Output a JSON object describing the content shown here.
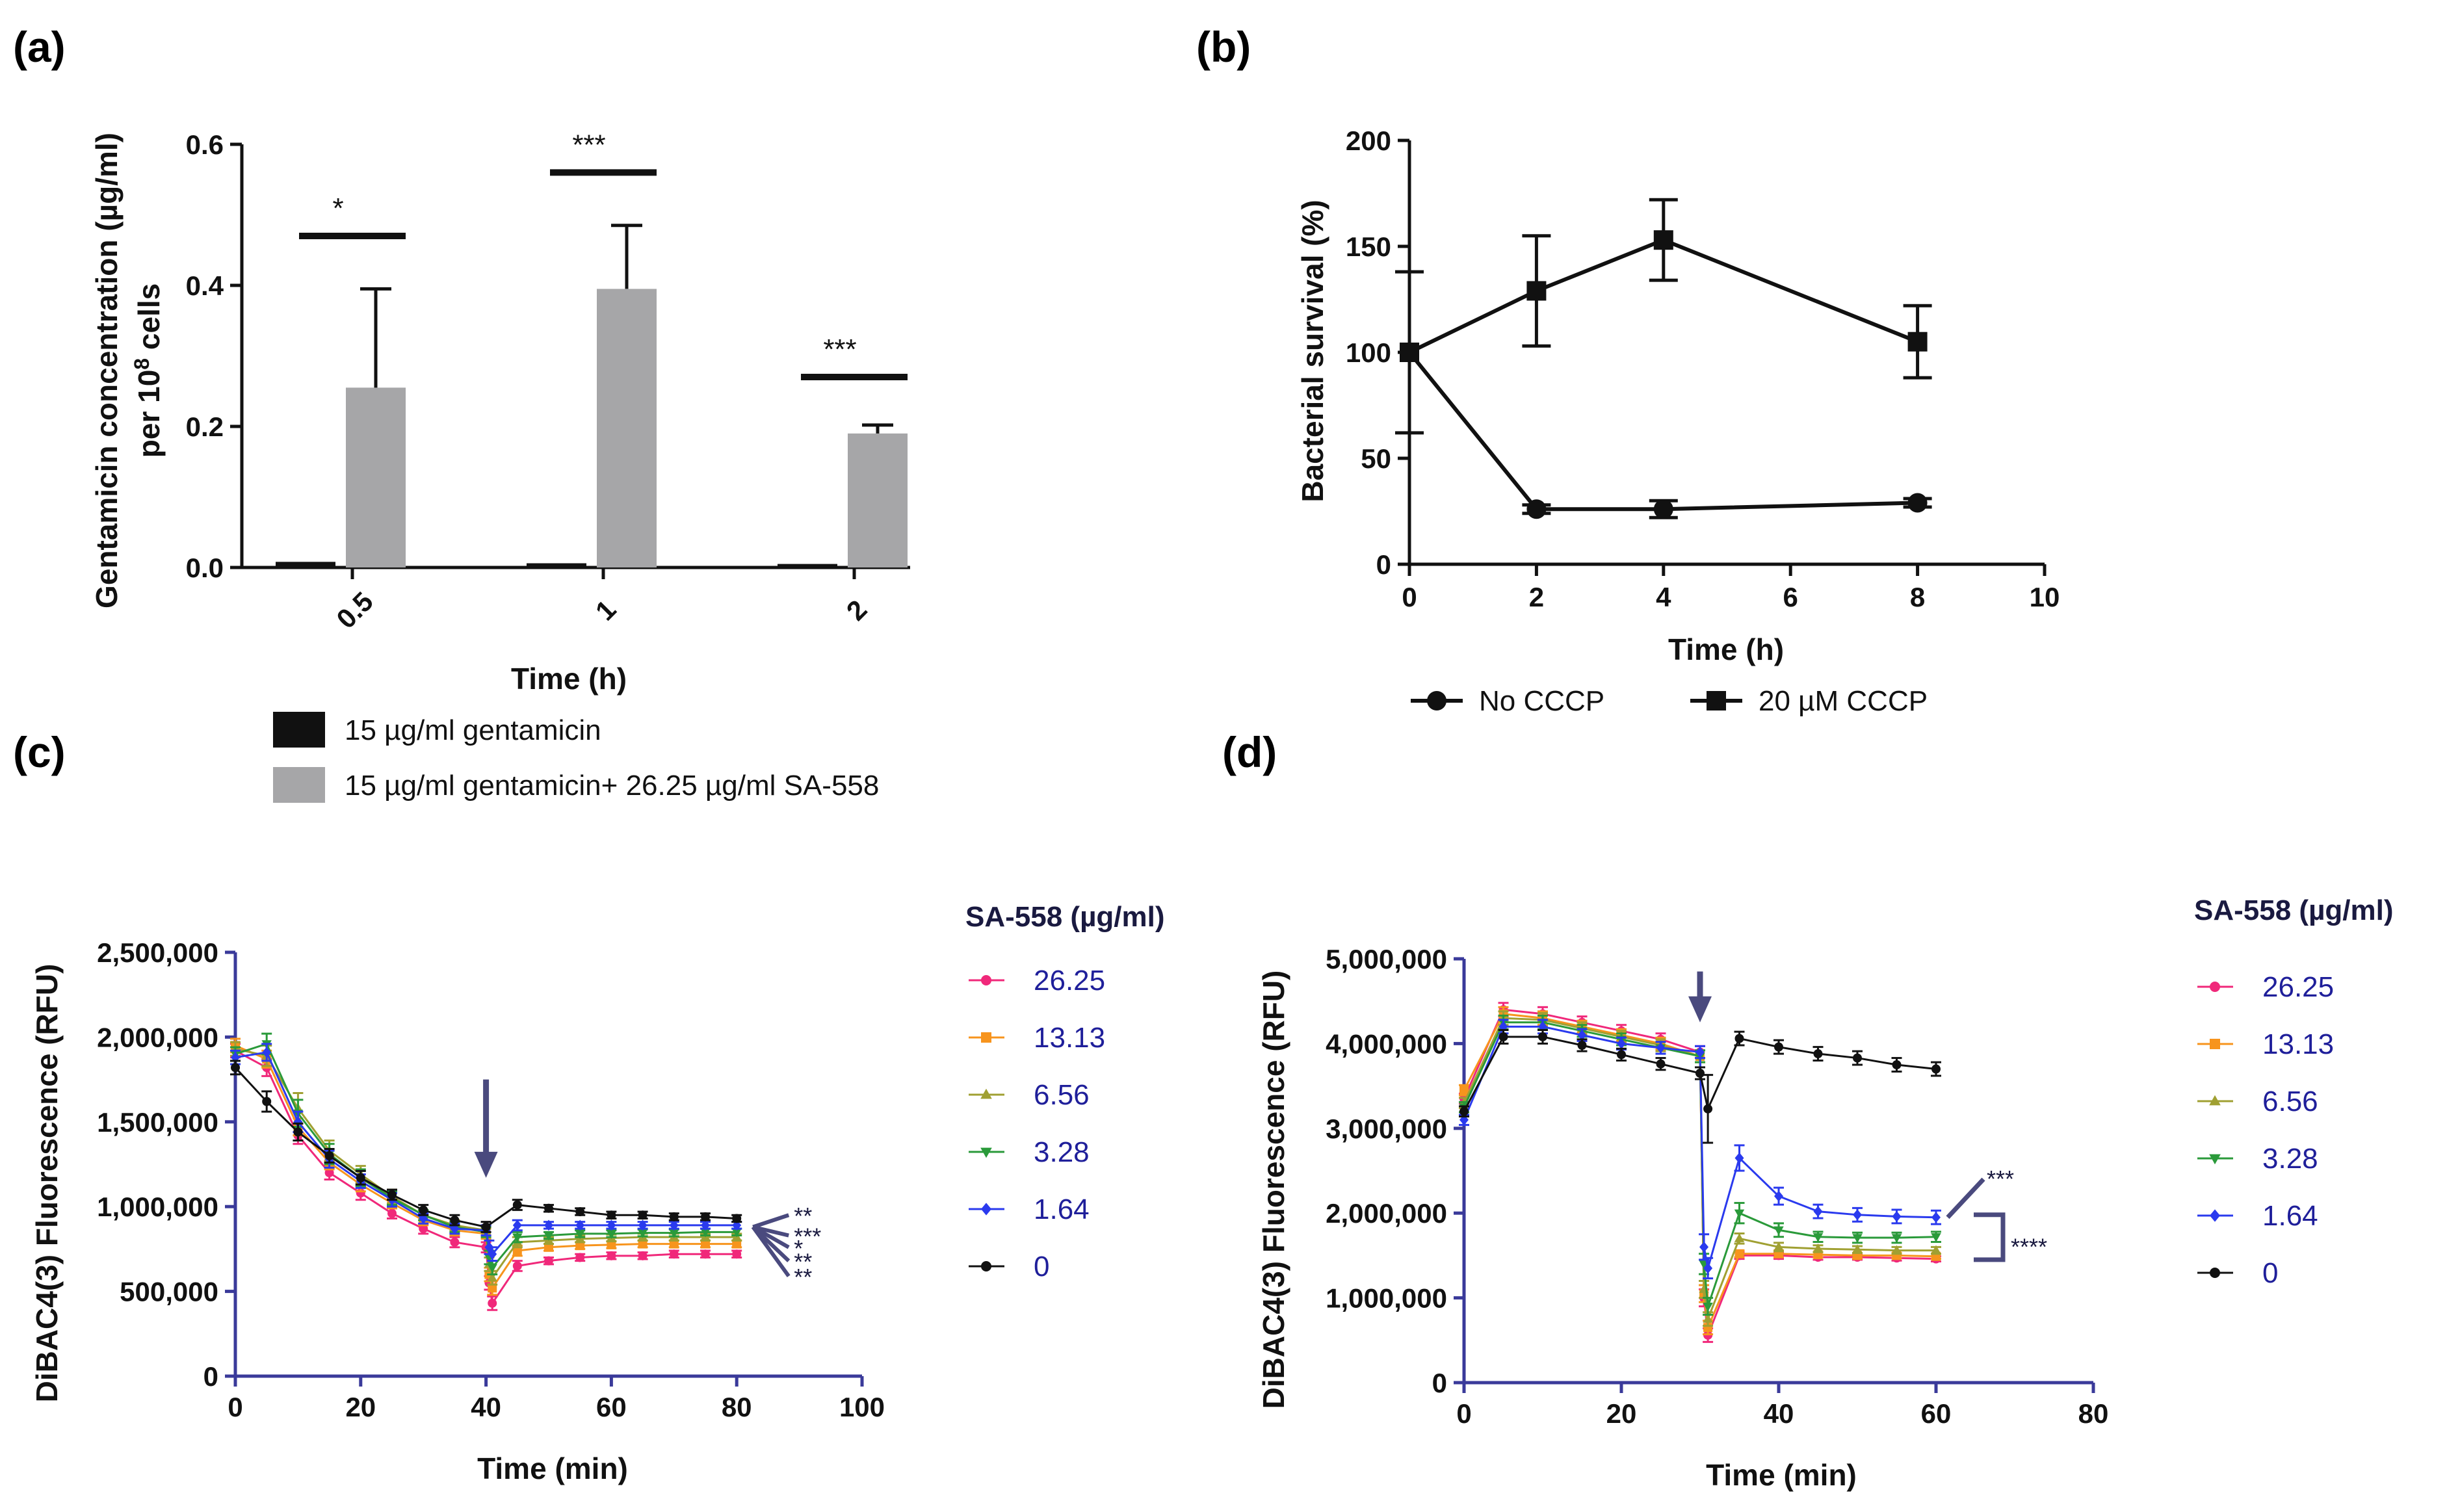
{
  "panels": {
    "a": {
      "label": "(a)"
    },
    "b": {
      "label": "(b)"
    },
    "c": {
      "label": "(c)"
    },
    "d": {
      "label": "(d)"
    }
  },
  "colors": {
    "black": "#111111",
    "gray": "#a6a6a8",
    "axis_blue": "#3a3a9a",
    "arrow": "#4a4a7e",
    "s26_25": "#f0287a",
    "s13_13": "#f7941d",
    "s6_56": "#a0a032",
    "s3_28": "#2a9a3a",
    "s1_64": "#2a3aee",
    "s0": "#111111"
  },
  "chart_data": [
    {
      "id": "a",
      "type": "bar",
      "title": "",
      "xlabel": "Time (h)",
      "ylabel_line1": "Gentamicin concentration (µg/ml)",
      "ylabel_line2_pre": "per 10",
      "ylabel_line2_sup": "8",
      "ylabel_line2_post": " cells",
      "categories": [
        "0.5",
        "1",
        "2"
      ],
      "ylim": [
        0,
        0.6
      ],
      "yticks": [
        0,
        0.2,
        0.4,
        0.6
      ],
      "ytick_labels": [
        "0.0",
        "0.2",
        "0.4",
        "0.6"
      ],
      "series": [
        {
          "name": "15 µg/ml gentamicin",
          "color": "#111111",
          "values": [
            0.008,
            0.006,
            0.005
          ],
          "errors": [
            0,
            0,
            0
          ]
        },
        {
          "name": "15 µg/ml gentamicin+ 26.25 µg/ml SA-558",
          "color": "#a6a6a8",
          "values": [
            0.255,
            0.395,
            0.19
          ],
          "errors": [
            0.14,
            0.09,
            0.012
          ]
        }
      ],
      "significance": [
        {
          "category": "0.5",
          "label": "*",
          "y": 0.47
        },
        {
          "category": "1",
          "label": "***",
          "y": 0.56
        },
        {
          "category": "2",
          "label": "***",
          "y": 0.27
        }
      ],
      "legend_position": "bottom"
    },
    {
      "id": "b",
      "type": "line",
      "title": "",
      "xlabel": "Time (h)",
      "ylabel": "Bacterial survival (%)",
      "xlim": [
        0,
        10
      ],
      "ylim": [
        0,
        200
      ],
      "xticks": [
        0,
        2,
        4,
        6,
        8,
        10
      ],
      "yticks": [
        0,
        50,
        100,
        150,
        200
      ],
      "series": [
        {
          "name": "No CCCP",
          "marker": "circle",
          "x": [
            0,
            2,
            4,
            8
          ],
          "y": [
            100,
            26,
            26,
            29
          ],
          "err": [
            38,
            2,
            4,
            2
          ]
        },
        {
          "name": "20 µM CCCP",
          "marker": "square",
          "x": [
            0,
            2,
            4,
            8
          ],
          "y": [
            100,
            129,
            153,
            105
          ],
          "err": [
            0,
            26,
            19,
            17
          ]
        }
      ],
      "legend_position": "bottom"
    },
    {
      "id": "c",
      "type": "line",
      "title": "",
      "xlabel": "Time (min)",
      "ylabel": "DiBAC4(3) Fluorescence (RFU)",
      "xlim": [
        0,
        100
      ],
      "ylim": [
        0,
        2500000
      ],
      "xticks": [
        0,
        20,
        40,
        60,
        80,
        100
      ],
      "yticks": [
        0,
        500000,
        1000000,
        1500000,
        2000000,
        2500000
      ],
      "ytick_labels": [
        "0",
        "500,000",
        "1,000,000",
        "1,500,000",
        "2,000,000",
        "2,500,000"
      ],
      "legend_title": "SA-558 (µg/ml)",
      "arrow_x": 40,
      "arrow_y_top": 1750000,
      "arrow_y_bottom": 1170000,
      "x": [
        0,
        5,
        10,
        15,
        20,
        25,
        30,
        35,
        40,
        40.5,
        41,
        45,
        50,
        55,
        60,
        65,
        70,
        75,
        80
      ],
      "series": [
        {
          "name": "26.25",
          "color_key": "s26_25",
          "marker": "circle",
          "y": [
            1920000,
            1820000,
            1420000,
            1200000,
            1080000,
            960000,
            870000,
            790000,
            760000,
            550000,
            430000,
            650000,
            680000,
            700000,
            710000,
            710000,
            720000,
            720000,
            720000
          ],
          "err": [
            40000,
            50000,
            50000,
            40000,
            40000,
            30000,
            30000,
            30000,
            30000,
            40000,
            40000,
            30000,
            20000,
            20000,
            20000,
            20000,
            20000,
            20000,
            20000
          ]
        },
        {
          "name": "13.13",
          "color_key": "s13_13",
          "marker": "square",
          "y": [
            1950000,
            1870000,
            1470000,
            1260000,
            1130000,
            1020000,
            920000,
            860000,
            840000,
            600000,
            520000,
            740000,
            760000,
            770000,
            775000,
            780000,
            780000,
            780000,
            780000
          ],
          "err": [
            40000,
            50000,
            50000,
            40000,
            40000,
            30000,
            30000,
            30000,
            30000,
            40000,
            40000,
            30000,
            20000,
            20000,
            20000,
            20000,
            20000,
            20000,
            20000
          ]
        },
        {
          "name": "6.56",
          "color_key": "s6_56",
          "marker": "triangle-up",
          "y": [
            1930000,
            1890000,
            1580000,
            1330000,
            1190000,
            1060000,
            950000,
            890000,
            860000,
            660000,
            580000,
            790000,
            800000,
            810000,
            815000,
            820000,
            820000,
            820000,
            820000
          ],
          "err": [
            40000,
            60000,
            90000,
            60000,
            50000,
            40000,
            30000,
            30000,
            30000,
            40000,
            40000,
            30000,
            20000,
            20000,
            20000,
            20000,
            20000,
            20000,
            20000
          ]
        },
        {
          "name": "3.28",
          "color_key": "s3_28",
          "marker": "triangle-down",
          "y": [
            1900000,
            1960000,
            1550000,
            1310000,
            1170000,
            1050000,
            950000,
            880000,
            850000,
            700000,
            640000,
            820000,
            830000,
            840000,
            840000,
            845000,
            845000,
            850000,
            850000
          ],
          "err": [
            40000,
            60000,
            80000,
            60000,
            50000,
            40000,
            30000,
            30000,
            30000,
            40000,
            40000,
            30000,
            20000,
            20000,
            20000,
            20000,
            20000,
            20000,
            20000
          ]
        },
        {
          "name": "1.64",
          "color_key": "s1_64",
          "marker": "diamond",
          "y": [
            1880000,
            1910000,
            1500000,
            1280000,
            1150000,
            1040000,
            930000,
            870000,
            860000,
            760000,
            720000,
            890000,
            890000,
            890000,
            890000,
            890000,
            890000,
            890000,
            890000
          ],
          "err": [
            40000,
            50000,
            60000,
            50000,
            40000,
            40000,
            30000,
            30000,
            30000,
            40000,
            40000,
            30000,
            20000,
            20000,
            20000,
            20000,
            20000,
            20000,
            20000
          ]
        },
        {
          "name": "0",
          "color_key": "s0",
          "marker": "circle",
          "y": [
            1820000,
            1620000,
            1440000,
            1300000,
            1170000,
            1070000,
            980000,
            920000,
            880000,
            null,
            null,
            1010000,
            990000,
            970000,
            950000,
            950000,
            940000,
            940000,
            930000
          ],
          "err": [
            40000,
            60000,
            50000,
            40000,
            40000,
            30000,
            30000,
            30000,
            30000,
            0,
            0,
            30000,
            20000,
            20000,
            20000,
            20000,
            20000,
            20000,
            20000
          ]
        }
      ],
      "annotations": [
        {
          "label": "**",
          "y": 950000
        },
        {
          "label": "***",
          "y": 830000
        },
        {
          "label": "*",
          "y": 760000
        },
        {
          "label": "**",
          "y": 680000
        },
        {
          "label": "**",
          "y": 590000
        }
      ]
    },
    {
      "id": "d",
      "type": "line",
      "title": "",
      "xlabel": "Time (min)",
      "ylabel": "DiBAC4(3) Fluorescence (RFU)",
      "xlim": [
        0,
        80
      ],
      "ylim": [
        0,
        5000000
      ],
      "xticks": [
        0,
        20,
        40,
        60,
        80
      ],
      "yticks": [
        0,
        1000000,
        2000000,
        3000000,
        4000000,
        5000000
      ],
      "ytick_labels": [
        "0",
        "1,000,000",
        "2,000,000",
        "3,000,000",
        "4,000,000",
        "5,000,000"
      ],
      "legend_title": "SA-558 (µg/ml)",
      "arrow_x": 30,
      "arrow_y_top": 4850000,
      "arrow_y_bottom": 4250000,
      "x": [
        0,
        5,
        10,
        15,
        20,
        25,
        30,
        30.5,
        31,
        35,
        40,
        45,
        50,
        55,
        60
      ],
      "series": [
        {
          "name": "26.25",
          "color_key": "s26_25",
          "marker": "circle",
          "y": [
            3350000,
            4400000,
            4350000,
            4250000,
            4150000,
            4050000,
            3900000,
            1000000,
            560000,
            1500000,
            1500000,
            1480000,
            1480000,
            1470000,
            1460000
          ],
          "err": [
            60000,
            80000,
            80000,
            70000,
            70000,
            70000,
            70000,
            100000,
            80000,
            40000,
            40000,
            30000,
            30000,
            30000,
            30000
          ]
        },
        {
          "name": "13.13",
          "color_key": "s13_13",
          "marker": "square",
          "y": [
            3450000,
            4350000,
            4300000,
            4200000,
            4100000,
            4000000,
            3850000,
            1050000,
            650000,
            1520000,
            1520000,
            1510000,
            1500000,
            1500000,
            1490000
          ],
          "err": [
            60000,
            80000,
            80000,
            70000,
            70000,
            70000,
            70000,
            100000,
            80000,
            40000,
            40000,
            30000,
            30000,
            30000,
            30000
          ]
        },
        {
          "name": "6.56",
          "color_key": "s6_56",
          "marker": "triangle-up",
          "y": [
            3300000,
            4300000,
            4280000,
            4180000,
            4080000,
            3980000,
            3850000,
            1100000,
            750000,
            1700000,
            1600000,
            1580000,
            1570000,
            1560000,
            1560000
          ],
          "err": [
            60000,
            80000,
            80000,
            70000,
            70000,
            70000,
            70000,
            100000,
            80000,
            60000,
            50000,
            40000,
            40000,
            40000,
            40000
          ]
        },
        {
          "name": "3.28",
          "color_key": "s3_28",
          "marker": "triangle-down",
          "y": [
            3250000,
            4250000,
            4250000,
            4150000,
            4050000,
            3950000,
            3850000,
            1400000,
            900000,
            2000000,
            1800000,
            1720000,
            1710000,
            1710000,
            1720000
          ],
          "err": [
            60000,
            80000,
            80000,
            70000,
            70000,
            70000,
            70000,
            120000,
            100000,
            120000,
            80000,
            60000,
            60000,
            60000,
            60000
          ]
        },
        {
          "name": "1.64",
          "color_key": "s1_64",
          "marker": "diamond",
          "y": [
            3100000,
            4200000,
            4200000,
            4100000,
            4000000,
            3950000,
            3900000,
            1600000,
            1350000,
            2650000,
            2200000,
            2020000,
            1980000,
            1960000,
            1950000
          ],
          "err": [
            60000,
            80000,
            80000,
            70000,
            70000,
            70000,
            70000,
            150000,
            120000,
            150000,
            100000,
            80000,
            80000,
            80000,
            80000
          ]
        },
        {
          "name": "0",
          "color_key": "s0",
          "marker": "circle",
          "y": [
            3200000,
            4080000,
            4080000,
            3980000,
            3870000,
            3760000,
            3650000,
            null,
            3230000,
            4060000,
            3960000,
            3880000,
            3830000,
            3750000,
            3700000
          ],
          "err": [
            60000,
            80000,
            80000,
            70000,
            70000,
            70000,
            70000,
            0,
            400000,
            80000,
            80000,
            80000,
            80000,
            80000,
            80000
          ]
        }
      ],
      "annotations": [
        {
          "label": "***",
          "y": 2400000
        },
        {
          "label": "****",
          "y": 1600000
        }
      ]
    }
  ]
}
